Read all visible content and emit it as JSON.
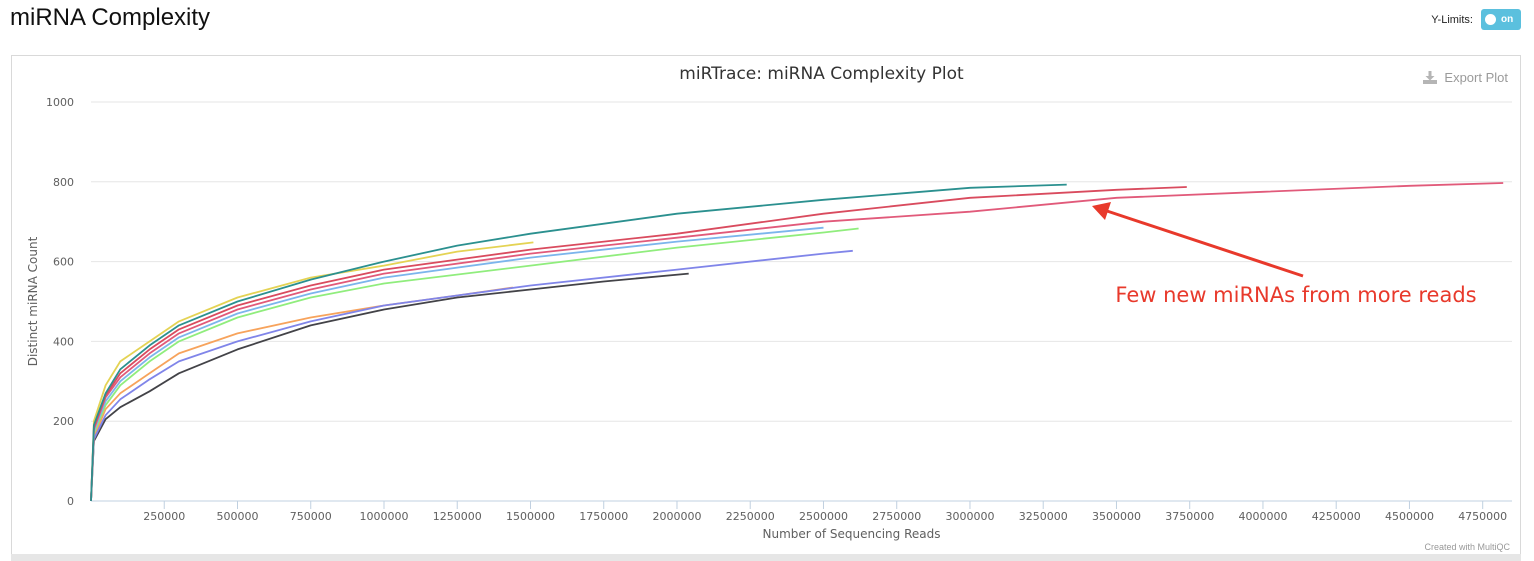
{
  "page": {
    "title": "miRNA Complexity"
  },
  "controls": {
    "ylimits_label": "Y-Limits:",
    "toggle_label": "on"
  },
  "export": {
    "label": "Export Plot",
    "icon": "download-icon"
  },
  "credit": "Created with MultiQC",
  "annotation": {
    "text": "Few new miRNAs from more reads",
    "color": "#e8392b"
  },
  "chart_data": {
    "type": "line",
    "title": "miRTrace: miRNA Complexity Plot",
    "xlabel": "Number of Sequencing Reads",
    "ylabel": "Distinct miRNA Count",
    "xlim": [
      0,
      4850000
    ],
    "ylim": [
      0,
      1000
    ],
    "xticks": [
      250000,
      500000,
      750000,
      1000000,
      1250000,
      1500000,
      1750000,
      2000000,
      2250000,
      2500000,
      2750000,
      3000000,
      3250000,
      3500000,
      3750000,
      4000000,
      4250000,
      4500000,
      4750000
    ],
    "yticks": [
      0,
      200,
      400,
      600,
      800,
      1000
    ],
    "grid": true,
    "series": [
      {
        "color": "#434348",
        "x": [
          0,
          10000,
          50000,
          100000,
          200000,
          300000,
          500000,
          750000,
          1000000,
          1250000,
          1500000,
          1750000,
          2040000
        ],
        "y": [
          0,
          150,
          205,
          235,
          275,
          320,
          380,
          440,
          480,
          510,
          530,
          550,
          570
        ]
      },
      {
        "color": "#e4d354",
        "x": [
          0,
          10000,
          50000,
          100000,
          200000,
          300000,
          500000,
          750000,
          1000000,
          1250000,
          1510000
        ],
        "y": [
          0,
          200,
          290,
          350,
          400,
          450,
          510,
          560,
          590,
          625,
          648
        ]
      },
      {
        "color": "#f7a35c",
        "x": [
          0,
          10000,
          50000,
          100000,
          200000,
          300000,
          500000,
          750000,
          1000000,
          1250000,
          1440000
        ],
        "y": [
          0,
          160,
          230,
          270,
          320,
          370,
          420,
          460,
          490,
          515,
          535
        ]
      },
      {
        "color": "#8085e9",
        "x": [
          0,
          10000,
          50000,
          100000,
          200000,
          300000,
          500000,
          750000,
          1000000,
          1500000,
          2000000,
          2500000,
          2600000
        ],
        "y": [
          0,
          155,
          215,
          255,
          305,
          350,
          400,
          450,
          490,
          540,
          580,
          620,
          627
        ]
      },
      {
        "color": "#90ed7d",
        "x": [
          0,
          10000,
          50000,
          100000,
          200000,
          300000,
          500000,
          750000,
          1000000,
          1500000,
          2000000,
          2500000,
          2620000
        ],
        "y": [
          0,
          170,
          240,
          290,
          350,
          400,
          460,
          510,
          545,
          590,
          635,
          673,
          683
        ]
      },
      {
        "color": "#7cb5ec",
        "x": [
          0,
          10000,
          50000,
          100000,
          200000,
          300000,
          500000,
          750000,
          1000000,
          1500000,
          2000000,
          2500000
        ],
        "y": [
          0,
          175,
          250,
          300,
          360,
          410,
          470,
          520,
          560,
          610,
          650,
          685
        ]
      },
      {
        "color": "#e15a7a",
        "x": [
          0,
          10000,
          50000,
          100000,
          200000,
          300000,
          500000,
          750000,
          1000000,
          1500000,
          2000000,
          2500000,
          3000000,
          3500000,
          4000000,
          4500000,
          4820000
        ],
        "y": [
          0,
          180,
          260,
          310,
          370,
          420,
          480,
          530,
          570,
          620,
          660,
          700,
          725,
          760,
          775,
          790,
          797
        ]
      },
      {
        "color": "#d94b5e",
        "x": [
          0,
          10000,
          50000,
          100000,
          200000,
          300000,
          500000,
          750000,
          1000000,
          1500000,
          2000000,
          2500000,
          3000000,
          3500000,
          3740000
        ],
        "y": [
          0,
          185,
          265,
          320,
          380,
          430,
          490,
          540,
          580,
          630,
          670,
          720,
          760,
          780,
          787
        ]
      },
      {
        "color": "#2b908f",
        "x": [
          0,
          10000,
          50000,
          100000,
          200000,
          300000,
          500000,
          750000,
          1000000,
          1250000,
          1500000,
          2000000,
          2500000,
          3000000,
          3330000
        ],
        "y": [
          0,
          190,
          270,
          330,
          390,
          440,
          500,
          555,
          600,
          640,
          670,
          720,
          755,
          785,
          793
        ]
      }
    ]
  }
}
